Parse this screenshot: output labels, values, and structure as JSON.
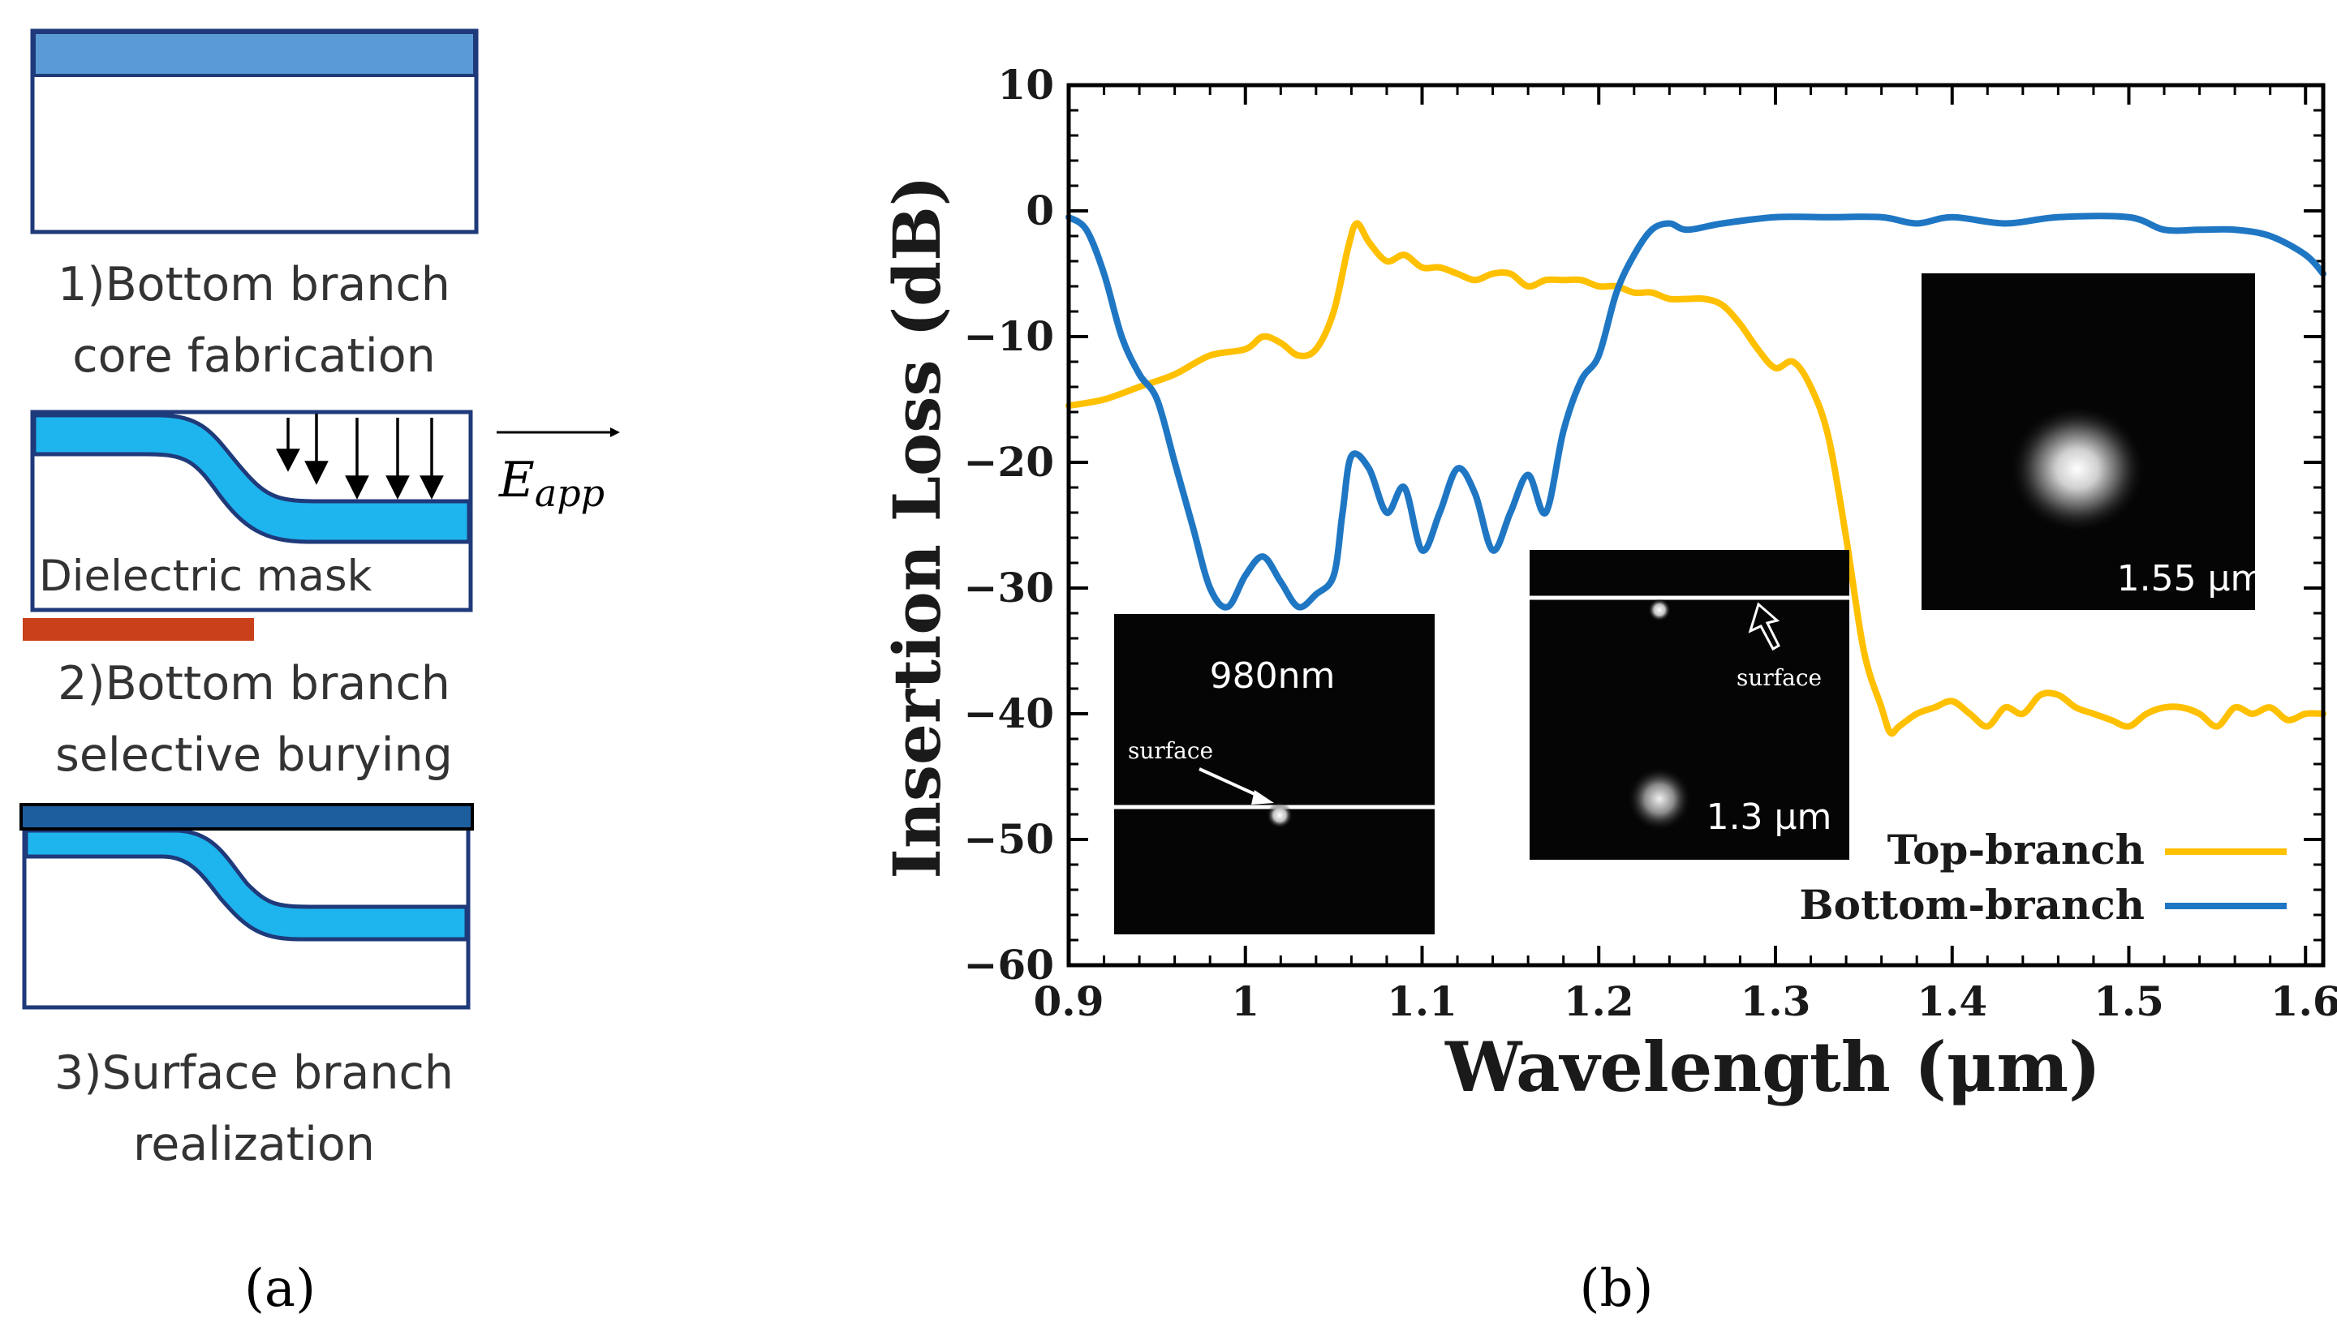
{
  "panel_a": {
    "step1_line1": "1)Bottom branch",
    "step1_line2": "core fabrication",
    "step2_line1": "2)Bottom branch",
    "step2_line2": "selective burying",
    "step3_line1": "3)Surface branch",
    "step3_line2": "realization",
    "mask_label": "Dielectric mask",
    "field_label": "E",
    "field_subscript": "app",
    "caption": "(a)",
    "colors": {
      "outline": "#1f3a7a",
      "core_top": "#5b9bd5",
      "core": "#1eb4ee",
      "mask": "#c9401a",
      "surface_layer": "#1d5e9e"
    }
  },
  "panel_b": {
    "caption": "(b)",
    "insets": {
      "inset_980": {
        "label": "980nm",
        "arrow_label": "surface"
      },
      "inset_13": {
        "label": "1.3 μm",
        "arrow_label": "surface"
      },
      "inset_155": {
        "label": "1.55 μm"
      }
    }
  },
  "chart_data": {
    "type": "line",
    "title": "",
    "xlabel": "Wavelength (μm)",
    "ylabel": "Insertion Loss (dB)",
    "xlim": [
      0.9,
      1.61
    ],
    "ylim": [
      -60,
      10
    ],
    "x_ticks": [
      0.9,
      1.0,
      1.1,
      1.2,
      1.3,
      1.4,
      1.5,
      1.6
    ],
    "x_tick_labels": [
      "0.9",
      "1",
      "1.1",
      "1.2",
      "1.3",
      "1.4",
      "1.5",
      "1.6"
    ],
    "y_ticks": [
      10,
      0,
      -10,
      -20,
      -30,
      -40,
      -50,
      -60
    ],
    "y_tick_labels": [
      "10",
      "0",
      "−10",
      "−20",
      "−30",
      "−40",
      "−50",
      "−60"
    ],
    "legend_position": "bottom-right",
    "series": [
      {
        "name": "Top-branch",
        "color": "#ffc000",
        "x": [
          0.9,
          0.92,
          0.94,
          0.96,
          0.98,
          1.0,
          1.01,
          1.02,
          1.03,
          1.04,
          1.05,
          1.058,
          1.063,
          1.07,
          1.08,
          1.09,
          1.1,
          1.11,
          1.12,
          1.13,
          1.14,
          1.15,
          1.16,
          1.17,
          1.18,
          1.19,
          1.2,
          1.21,
          1.22,
          1.23,
          1.24,
          1.25,
          1.26,
          1.27,
          1.28,
          1.29,
          1.3,
          1.31,
          1.32,
          1.33,
          1.34,
          1.35,
          1.36,
          1.365,
          1.37,
          1.38,
          1.39,
          1.4,
          1.41,
          1.42,
          1.43,
          1.44,
          1.45,
          1.46,
          1.47,
          1.48,
          1.49,
          1.5,
          1.51,
          1.52,
          1.53,
          1.54,
          1.55,
          1.56,
          1.57,
          1.58,
          1.59,
          1.6,
          1.61
        ],
        "values": [
          -15.5,
          -15,
          -14,
          -13,
          -11.5,
          -11,
          -10,
          -10.5,
          -11.5,
          -11,
          -8,
          -3,
          -1,
          -2.5,
          -4,
          -3.5,
          -4.5,
          -4.5,
          -5,
          -5.5,
          -5,
          -5,
          -6,
          -5.5,
          -5.5,
          -5.5,
          -6,
          -6,
          -6.5,
          -6.5,
          -7,
          -7,
          -7,
          -7.5,
          -9,
          -11,
          -12.5,
          -12,
          -14,
          -18,
          -26,
          -35,
          -39.5,
          -41.5,
          -41,
          -40,
          -39.5,
          -39,
          -40,
          -41,
          -39.5,
          -40,
          -38.5,
          -38.5,
          -39.5,
          -40,
          -40.5,
          -41,
          -40,
          -39.5,
          -39.5,
          -40,
          -41,
          -39.5,
          -40,
          -39.5,
          -40.5,
          -40,
          -40
        ]
      },
      {
        "name": "Bottom-branch",
        "color": "#1f77c4",
        "x": [
          0.9,
          0.91,
          0.92,
          0.93,
          0.94,
          0.95,
          0.96,
          0.97,
          0.98,
          0.99,
          1.0,
          1.01,
          1.02,
          1.03,
          1.04,
          1.05,
          1.055,
          1.06,
          1.07,
          1.08,
          1.09,
          1.1,
          1.11,
          1.12,
          1.13,
          1.14,
          1.15,
          1.16,
          1.17,
          1.18,
          1.19,
          1.2,
          1.21,
          1.22,
          1.23,
          1.24,
          1.25,
          1.27,
          1.3,
          1.33,
          1.36,
          1.38,
          1.4,
          1.43,
          1.46,
          1.5,
          1.52,
          1.54,
          1.56,
          1.58,
          1.6,
          1.61
        ],
        "values": [
          -0.5,
          -1.5,
          -5,
          -10,
          -13,
          -15,
          -20,
          -25,
          -30,
          -31.5,
          -29,
          -27.5,
          -29.5,
          -31.5,
          -30.5,
          -29,
          -24,
          -19.5,
          -20.5,
          -24,
          -22,
          -27,
          -24,
          -20.5,
          -22.5,
          -27,
          -24,
          -21,
          -24,
          -17.5,
          -13.5,
          -11.5,
          -6.5,
          -3.5,
          -1.5,
          -1,
          -1.5,
          -1,
          -0.5,
          -0.5,
          -0.5,
          -1,
          -0.5,
          -1,
          -0.5,
          -0.5,
          -1.5,
          -1.5,
          -1.5,
          -2,
          -3.5,
          -5
        ]
      }
    ]
  }
}
